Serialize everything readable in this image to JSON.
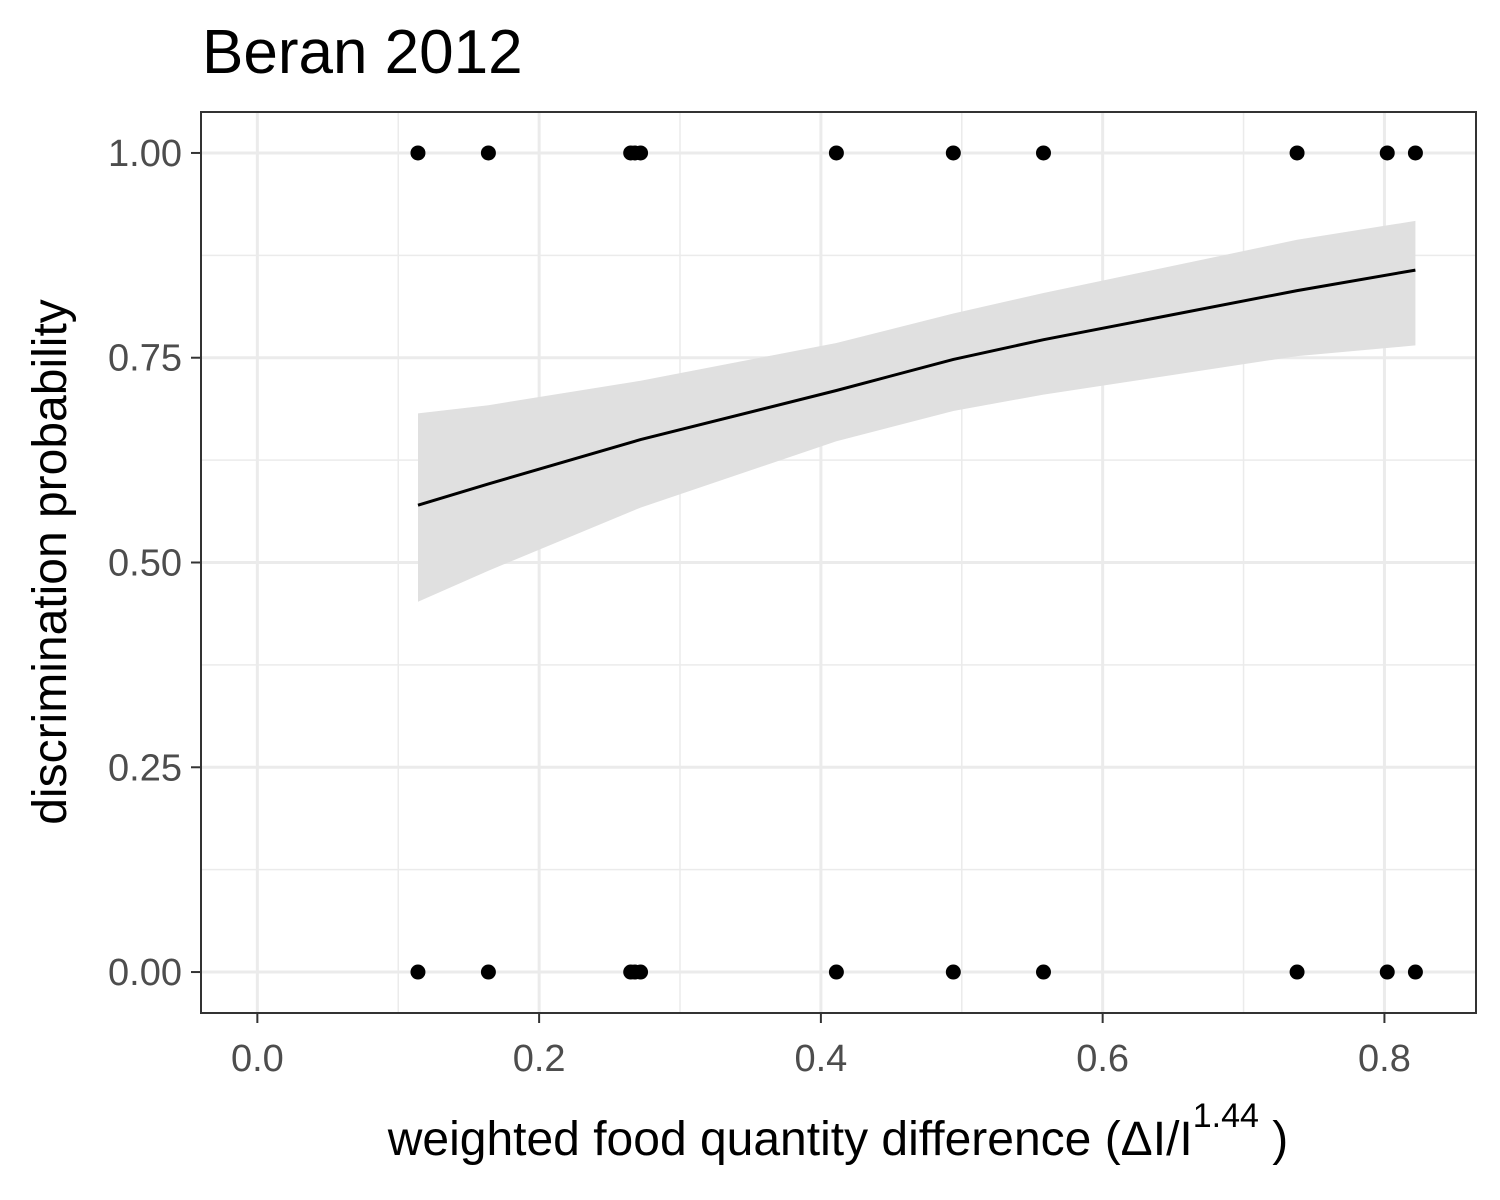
{
  "chart_data": {
    "type": "scatter",
    "title": "Beran 2012",
    "xlabel": {
      "prefix": "weighted  food quantity  difference (ΔI/I",
      "superscript": "1.44",
      "suffix": " )"
    },
    "ylabel": "discrimination probability",
    "xlim": [
      -0.04,
      0.865
    ],
    "ylim": [
      -0.05,
      1.05
    ],
    "x_ticks": [
      0.0,
      0.2,
      0.4,
      0.6,
      0.8
    ],
    "x_tick_labels": [
      "0.0",
      "0.2",
      "0.4",
      "0.6",
      "0.8"
    ],
    "y_ticks": [
      0.0,
      0.25,
      0.5,
      0.75,
      1.0
    ],
    "y_tick_labels": [
      "0.00",
      "0.25",
      "0.50",
      "0.75",
      "1.00"
    ],
    "grid": true,
    "points": [
      {
        "x": 0.114,
        "y": 1
      },
      {
        "x": 0.164,
        "y": 1
      },
      {
        "x": 0.265,
        "y": 1
      },
      {
        "x": 0.268,
        "y": 1
      },
      {
        "x": 0.272,
        "y": 1
      },
      {
        "x": 0.411,
        "y": 1
      },
      {
        "x": 0.494,
        "y": 1
      },
      {
        "x": 0.558,
        "y": 1
      },
      {
        "x": 0.738,
        "y": 1
      },
      {
        "x": 0.802,
        "y": 1
      },
      {
        "x": 0.822,
        "y": 1
      },
      {
        "x": 0.114,
        "y": 0
      },
      {
        "x": 0.164,
        "y": 0
      },
      {
        "x": 0.265,
        "y": 0
      },
      {
        "x": 0.268,
        "y": 0
      },
      {
        "x": 0.272,
        "y": 0
      },
      {
        "x": 0.411,
        "y": 0
      },
      {
        "x": 0.494,
        "y": 0
      },
      {
        "x": 0.558,
        "y": 0
      },
      {
        "x": 0.738,
        "y": 0
      },
      {
        "x": 0.802,
        "y": 0
      },
      {
        "x": 0.822,
        "y": 0
      }
    ],
    "fit": {
      "x": [
        0.114,
        0.164,
        0.272,
        0.411,
        0.494,
        0.558,
        0.738,
        0.822
      ],
      "y": [
        0.57,
        0.596,
        0.65,
        0.71,
        0.748,
        0.772,
        0.832,
        0.857
      ],
      "lower": [
        0.452,
        0.49,
        0.567,
        0.648,
        0.685,
        0.705,
        0.752,
        0.765
      ],
      "upper": [
        0.682,
        0.692,
        0.722,
        0.768,
        0.804,
        0.829,
        0.894,
        0.917
      ]
    },
    "colors": {
      "points": "#000000",
      "line": "#000000",
      "ribbon": "#e0e0e0",
      "grid": "#ebebeb",
      "panel_border": "#333333",
      "tick_label": "#4d4d4d"
    }
  }
}
